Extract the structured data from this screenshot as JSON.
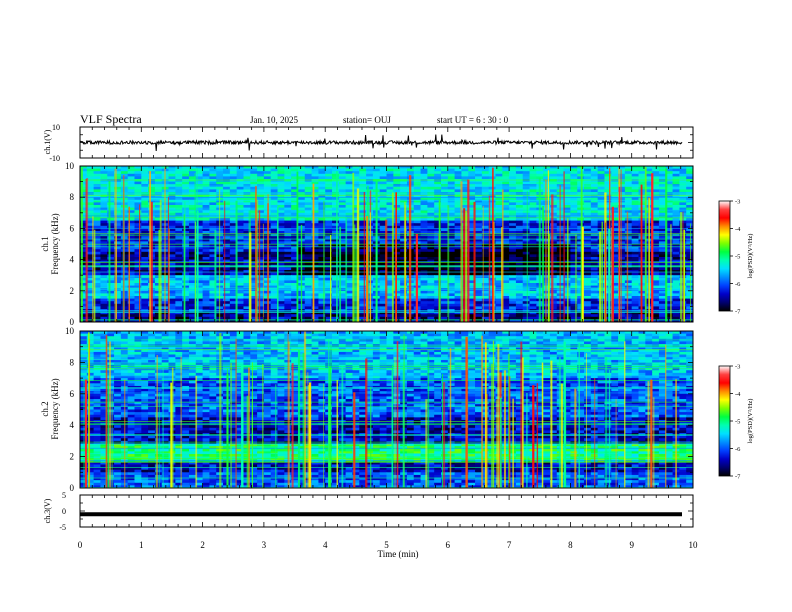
{
  "header": {
    "title": "VLF Spectra",
    "date": "Jan. 10, 2025",
    "station": "station= OUJ",
    "start": "start  UT =  6 : 30 : 0"
  },
  "colorbar": {
    "label": "log(PSD)(V²/Hz)",
    "ticks": [
      "-3",
      "-4",
      "-5",
      "-6",
      "-7"
    ],
    "stops": [
      "#ffffff",
      "#ff4040",
      "#ff0000",
      "#ff8c00",
      "#ffff00",
      "#7cff00",
      "#00ff40",
      "#00ffb0",
      "#00e0ff",
      "#0090ff",
      "#0040ff",
      "#0000c8",
      "#00006e",
      "#000000"
    ]
  },
  "chart_data": [
    {
      "type": "line",
      "panel": "ch1-waveform",
      "ylabel": "ch.1(V)",
      "ylim": [
        -10,
        10
      ],
      "y_ticks": [
        "10",
        "-10"
      ],
      "xlim": [
        0,
        10
      ],
      "baseline": 0,
      "trace_color": "#000000"
    },
    {
      "type": "heatmap",
      "panel": "ch1-spectrogram",
      "ylabel_top": "ch.1",
      "ylabel": "Frequency (kHz)",
      "ylim": [
        0,
        10
      ],
      "y_ticks": [
        "0",
        "2",
        "4",
        "6",
        "8",
        "10"
      ],
      "xlim": [
        0,
        10
      ],
      "zlabel": "log(PSD)(V²/Hz)",
      "zlim": [
        -7,
        -3
      ],
      "bands": [
        {
          "freq": [
            0,
            0.6
          ],
          "level": -6.6
        },
        {
          "freq": [
            0.6,
            1.5
          ],
          "level": -6.2
        },
        {
          "freq": [
            1.5,
            3.0
          ],
          "level": -5.6
        },
        {
          "freq": [
            3.0,
            4.5
          ],
          "level": -6.5
        },
        {
          "freq": [
            4.5,
            6.5
          ],
          "level": -6.2
        },
        {
          "freq": [
            6.5,
            10
          ],
          "level": -5.4
        }
      ]
    },
    {
      "type": "heatmap",
      "panel": "ch2-spectrogram",
      "ylabel_top": "ch.2",
      "ylabel": "Frequency (kHz)",
      "ylim": [
        0,
        10
      ],
      "y_ticks": [
        "0",
        "2",
        "4",
        "6",
        "8",
        "10"
      ],
      "xlim": [
        0,
        10
      ],
      "zlabel": "log(PSD)(V²/Hz)",
      "zlim": [
        -7,
        -3
      ],
      "bands": [
        {
          "freq": [
            0,
            1.0
          ],
          "level": -6.0
        },
        {
          "freq": [
            1.0,
            1.7
          ],
          "level": -6.4
        },
        {
          "freq": [
            1.7,
            2.8
          ],
          "level": -5.0
        },
        {
          "freq": [
            2.8,
            4.5
          ],
          "level": -6.4
        },
        {
          "freq": [
            4.5,
            7.0
          ],
          "level": -6.0
        },
        {
          "freq": [
            7.0,
            10
          ],
          "level": -5.6
        }
      ]
    },
    {
      "type": "line",
      "panel": "ch3-waveform",
      "ylabel": "ch.3(V)",
      "ylim": [
        -5,
        5
      ],
      "y_ticks": [
        "5",
        "0",
        "-5"
      ],
      "xlim": [
        0,
        10
      ],
      "baseline": -1,
      "xlabel": "Time (min)",
      "x_ticks": [
        "0",
        "1",
        "2",
        "3",
        "4",
        "5",
        "6",
        "7",
        "8",
        "9",
        "10"
      ],
      "trace_color": "#000000"
    }
  ]
}
